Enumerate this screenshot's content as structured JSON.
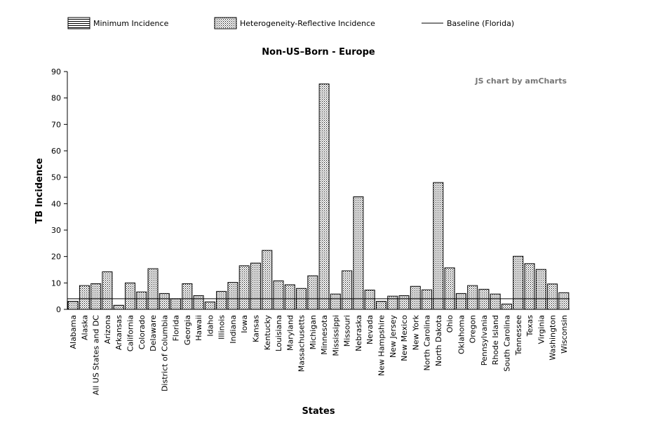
{
  "chart_data": {
    "type": "bar",
    "title": "Non-US–Born - Europe",
    "xlabel": "States",
    "ylabel": "TB Incidence",
    "ylim": [
      0,
      90
    ],
    "yticks": [
      0,
      10,
      20,
      30,
      40,
      50,
      60,
      70,
      80,
      90
    ],
    "credit": "JS chart by amCharts",
    "legend_position": "top-left",
    "categories": [
      "Alabama",
      "Alaska",
      "All US States and DC",
      "Arizona",
      "Arkansas",
      "California",
      "Colorado",
      "Delaware",
      "District of Columbia",
      "Florida",
      "Georgia",
      "Hawaii",
      "Idaho",
      "Illinois",
      "Indiana",
      "Iowa",
      "Kansas",
      "Kentucky",
      "Louisiana",
      "Maryland",
      "Massachusetts",
      "Michigan",
      "Minnesota",
      "Mississippi",
      "Missouri",
      "Nebraska",
      "Nevada",
      "New Hampshire",
      "New Jersey",
      "New Mexico",
      "New York",
      "North Carolina",
      "North Dakota",
      "Ohio",
      "Oklahoma",
      "Oregon",
      "Pennsylvania",
      "Rhode Island",
      "South Carolina",
      "Tennessee",
      "Texas",
      "Virginia",
      "Washington",
      "Wisconsin"
    ],
    "series": [
      {
        "name": "Minimum Incidence",
        "pattern": "horizontal-stripes",
        "values": [
          3,
          4,
          4,
          4,
          1.5,
          4,
          4,
          4,
          4,
          4,
          4,
          4,
          2.8,
          4,
          4,
          4,
          4,
          4,
          4,
          4,
          4,
          4,
          4,
          4,
          4,
          4,
          4,
          3,
          4,
          4,
          4,
          4,
          4,
          4,
          4,
          4,
          4,
          4,
          2,
          4,
          4,
          4,
          4,
          4
        ]
      },
      {
        "name": "Heterogeneity-Reflective Incidence",
        "pattern": "dots",
        "values": [
          3,
          9,
          9.7,
          14.2,
          1.5,
          10,
          6.6,
          15.4,
          6,
          4,
          9.7,
          5.2,
          2.8,
          6.8,
          10.2,
          16.5,
          17.5,
          22.3,
          10.8,
          9.3,
          7.9,
          12.7,
          85.3,
          5.8,
          14.6,
          42.6,
          7.3,
          3,
          5,
          5.2,
          8.7,
          7.4,
          48,
          15.7,
          6,
          9,
          7.6,
          5.8,
          2,
          20.1,
          17.3,
          15.1,
          9.6,
          6.3
        ]
      },
      {
        "name": "Baseline (Florida)",
        "type": "line",
        "value": 4
      }
    ]
  },
  "colors": {
    "bar_stroke": "#000000",
    "bar_fill": "#ffffff",
    "pattern": "#000000",
    "credit": "#777777"
  }
}
